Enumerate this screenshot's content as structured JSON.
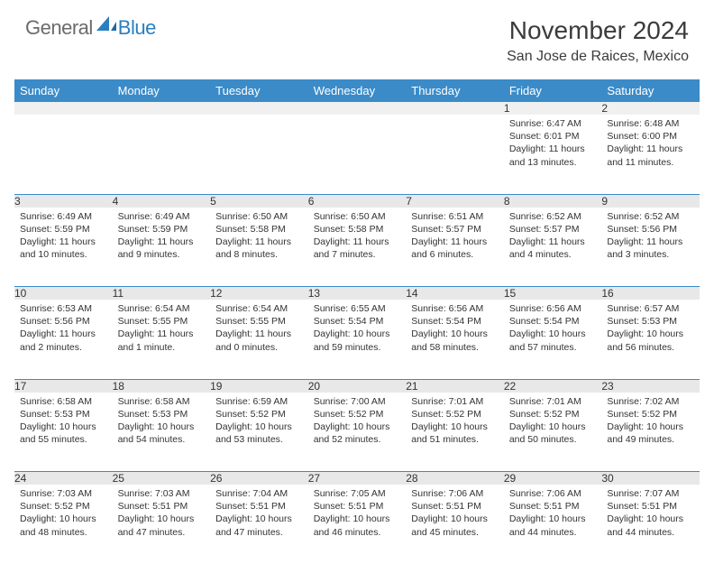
{
  "logo": {
    "text1": "General",
    "text2": "Blue"
  },
  "title": "November 2024",
  "location": "San Jose de Raices, Mexico",
  "colors": {
    "header_bg": "#3b8bc8",
    "header_text": "#ffffff",
    "daynum_bg_first": "#f0f0f0",
    "daynum_bg_rest": "#e8e8e8",
    "row_divider": "#3b8bc8",
    "logo_gray": "#6b6b6b",
    "logo_blue": "#2a7fbf",
    "body_text": "#333333"
  },
  "weekdays": [
    "Sunday",
    "Monday",
    "Tuesday",
    "Wednesday",
    "Thursday",
    "Friday",
    "Saturday"
  ],
  "weeks": [
    [
      null,
      null,
      null,
      null,
      null,
      {
        "n": "1",
        "sunrise": "6:47 AM",
        "sunset": "6:01 PM",
        "daylight": "11 hours and 13 minutes."
      },
      {
        "n": "2",
        "sunrise": "6:48 AM",
        "sunset": "6:00 PM",
        "daylight": "11 hours and 11 minutes."
      }
    ],
    [
      {
        "n": "3",
        "sunrise": "6:49 AM",
        "sunset": "5:59 PM",
        "daylight": "11 hours and 10 minutes."
      },
      {
        "n": "4",
        "sunrise": "6:49 AM",
        "sunset": "5:59 PM",
        "daylight": "11 hours and 9 minutes."
      },
      {
        "n": "5",
        "sunrise": "6:50 AM",
        "sunset": "5:58 PM",
        "daylight": "11 hours and 8 minutes."
      },
      {
        "n": "6",
        "sunrise": "6:50 AM",
        "sunset": "5:58 PM",
        "daylight": "11 hours and 7 minutes."
      },
      {
        "n": "7",
        "sunrise": "6:51 AM",
        "sunset": "5:57 PM",
        "daylight": "11 hours and 6 minutes."
      },
      {
        "n": "8",
        "sunrise": "6:52 AM",
        "sunset": "5:57 PM",
        "daylight": "11 hours and 4 minutes."
      },
      {
        "n": "9",
        "sunrise": "6:52 AM",
        "sunset": "5:56 PM",
        "daylight": "11 hours and 3 minutes."
      }
    ],
    [
      {
        "n": "10",
        "sunrise": "6:53 AM",
        "sunset": "5:56 PM",
        "daylight": "11 hours and 2 minutes."
      },
      {
        "n": "11",
        "sunrise": "6:54 AM",
        "sunset": "5:55 PM",
        "daylight": "11 hours and 1 minute."
      },
      {
        "n": "12",
        "sunrise": "6:54 AM",
        "sunset": "5:55 PM",
        "daylight": "11 hours and 0 minutes."
      },
      {
        "n": "13",
        "sunrise": "6:55 AM",
        "sunset": "5:54 PM",
        "daylight": "10 hours and 59 minutes."
      },
      {
        "n": "14",
        "sunrise": "6:56 AM",
        "sunset": "5:54 PM",
        "daylight": "10 hours and 58 minutes."
      },
      {
        "n": "15",
        "sunrise": "6:56 AM",
        "sunset": "5:54 PM",
        "daylight": "10 hours and 57 minutes."
      },
      {
        "n": "16",
        "sunrise": "6:57 AM",
        "sunset": "5:53 PM",
        "daylight": "10 hours and 56 minutes."
      }
    ],
    [
      {
        "n": "17",
        "sunrise": "6:58 AM",
        "sunset": "5:53 PM",
        "daylight": "10 hours and 55 minutes."
      },
      {
        "n": "18",
        "sunrise": "6:58 AM",
        "sunset": "5:53 PM",
        "daylight": "10 hours and 54 minutes."
      },
      {
        "n": "19",
        "sunrise": "6:59 AM",
        "sunset": "5:52 PM",
        "daylight": "10 hours and 53 minutes."
      },
      {
        "n": "20",
        "sunrise": "7:00 AM",
        "sunset": "5:52 PM",
        "daylight": "10 hours and 52 minutes."
      },
      {
        "n": "21",
        "sunrise": "7:01 AM",
        "sunset": "5:52 PM",
        "daylight": "10 hours and 51 minutes."
      },
      {
        "n": "22",
        "sunrise": "7:01 AM",
        "sunset": "5:52 PM",
        "daylight": "10 hours and 50 minutes."
      },
      {
        "n": "23",
        "sunrise": "7:02 AM",
        "sunset": "5:52 PM",
        "daylight": "10 hours and 49 minutes."
      }
    ],
    [
      {
        "n": "24",
        "sunrise": "7:03 AM",
        "sunset": "5:52 PM",
        "daylight": "10 hours and 48 minutes."
      },
      {
        "n": "25",
        "sunrise": "7:03 AM",
        "sunset": "5:51 PM",
        "daylight": "10 hours and 47 minutes."
      },
      {
        "n": "26",
        "sunrise": "7:04 AM",
        "sunset": "5:51 PM",
        "daylight": "10 hours and 47 minutes."
      },
      {
        "n": "27",
        "sunrise": "7:05 AM",
        "sunset": "5:51 PM",
        "daylight": "10 hours and 46 minutes."
      },
      {
        "n": "28",
        "sunrise": "7:06 AM",
        "sunset": "5:51 PM",
        "daylight": "10 hours and 45 minutes."
      },
      {
        "n": "29",
        "sunrise": "7:06 AM",
        "sunset": "5:51 PM",
        "daylight": "10 hours and 44 minutes."
      },
      {
        "n": "30",
        "sunrise": "7:07 AM",
        "sunset": "5:51 PM",
        "daylight": "10 hours and 44 minutes."
      }
    ]
  ],
  "labels": {
    "sunrise_prefix": "Sunrise: ",
    "sunset_prefix": "Sunset: ",
    "daylight_prefix": "Daylight: "
  }
}
